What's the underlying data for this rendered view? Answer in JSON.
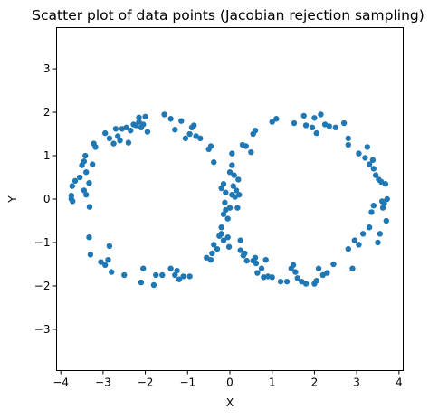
{
  "chart_data": {
    "type": "scatter",
    "title": "Scatter plot of data points (Jacobian rejection sampling)",
    "xlabel": "X",
    "ylabel": "Y",
    "xlim": [
      -4.1,
      4.1
    ],
    "ylim": [
      -3.95,
      3.95
    ],
    "xticks": [
      -4,
      -3,
      -2,
      -1,
      0,
      1,
      2,
      3,
      4
    ],
    "yticks": [
      -3,
      -2,
      -1,
      0,
      1,
      2,
      3
    ],
    "grid": false,
    "marker_color": "#1f77b4",
    "points": [
      {
        "x": -3.75,
        "y": 0.0
      },
      {
        "x": -3.75,
        "y": 0.08
      },
      {
        "x": -3.73,
        "y": 0.3
      },
      {
        "x": -3.72,
        "y": -0.05
      },
      {
        "x": -3.66,
        "y": 0.42
      },
      {
        "x": -3.55,
        "y": 0.5
      },
      {
        "x": -3.5,
        "y": 0.78
      },
      {
        "x": -3.45,
        "y": 0.87
      },
      {
        "x": -3.42,
        "y": 1.0
      },
      {
        "x": -3.4,
        "y": 0.62
      },
      {
        "x": -3.33,
        "y": 0.37
      },
      {
        "x": -3.45,
        "y": 0.2
      },
      {
        "x": -3.4,
        "y": 0.1
      },
      {
        "x": -3.22,
        "y": 1.28
      },
      {
        "x": -3.18,
        "y": 1.2
      },
      {
        "x": -3.25,
        "y": 0.8
      },
      {
        "x": -3.32,
        "y": -0.18
      },
      {
        "x": -3.33,
        "y": -0.88
      },
      {
        "x": -3.3,
        "y": -1.28
      },
      {
        "x": -3.05,
        "y": -1.45
      },
      {
        "x": -2.95,
        "y": -1.52
      },
      {
        "x": -2.88,
        "y": -1.4
      },
      {
        "x": -2.85,
        "y": -1.08
      },
      {
        "x": -2.8,
        "y": -1.68
      },
      {
        "x": -2.5,
        "y": -1.75
      },
      {
        "x": -2.95,
        "y": 1.52
      },
      {
        "x": -2.85,
        "y": 1.4
      },
      {
        "x": -2.75,
        "y": 1.28
      },
      {
        "x": -2.7,
        "y": 1.62
      },
      {
        "x": -2.65,
        "y": 1.45
      },
      {
        "x": -2.6,
        "y": 1.35
      },
      {
        "x": -2.55,
        "y": 1.62
      },
      {
        "x": -2.45,
        "y": 1.65
      },
      {
        "x": -2.4,
        "y": 1.3
      },
      {
        "x": -2.35,
        "y": 1.58
      },
      {
        "x": -2.28,
        "y": 1.72
      },
      {
        "x": -2.22,
        "y": 1.7
      },
      {
        "x": -2.15,
        "y": 1.78
      },
      {
        "x": -2.15,
        "y": 1.88
      },
      {
        "x": -2.1,
        "y": 1.65
      },
      {
        "x": -2.05,
        "y": 1.72
      },
      {
        "x": -2.0,
        "y": 1.9
      },
      {
        "x": -1.95,
        "y": 1.55
      },
      {
        "x": -1.55,
        "y": 1.95
      },
      {
        "x": -1.4,
        "y": 1.85
      },
      {
        "x": -1.3,
        "y": 1.6
      },
      {
        "x": -1.15,
        "y": 1.8
      },
      {
        "x": -1.05,
        "y": 1.4
      },
      {
        "x": -0.95,
        "y": 1.5
      },
      {
        "x": -0.9,
        "y": 1.65
      },
      {
        "x": -0.85,
        "y": 1.7
      },
      {
        "x": -0.8,
        "y": 1.45
      },
      {
        "x": -0.7,
        "y": 1.4
      },
      {
        "x": -0.5,
        "y": 1.15
      },
      {
        "x": -0.45,
        "y": 1.22
      },
      {
        "x": -0.38,
        "y": 0.85
      },
      {
        "x": -2.05,
        "y": -1.6
      },
      {
        "x": -2.1,
        "y": -1.92
      },
      {
        "x": -1.8,
        "y": -1.98
      },
      {
        "x": -1.75,
        "y": -1.75
      },
      {
        "x": -1.6,
        "y": -1.75
      },
      {
        "x": -1.4,
        "y": -1.6
      },
      {
        "x": -1.3,
        "y": -1.75
      },
      {
        "x": -1.25,
        "y": -1.65
      },
      {
        "x": -1.2,
        "y": -1.85
      },
      {
        "x": -1.1,
        "y": -1.78
      },
      {
        "x": -0.95,
        "y": -1.78
      },
      {
        "x": -0.55,
        "y": -1.35
      },
      {
        "x": -0.45,
        "y": -1.4
      },
      {
        "x": -0.42,
        "y": -1.25
      },
      {
        "x": -0.38,
        "y": -1.05
      },
      {
        "x": -0.3,
        "y": -1.15
      },
      {
        "x": -0.25,
        "y": -0.85
      },
      {
        "x": -0.2,
        "y": -0.65
      },
      {
        "x": -0.2,
        "y": -0.8
      },
      {
        "x": -0.15,
        "y": -0.95
      },
      {
        "x": -0.15,
        "y": -0.35
      },
      {
        "x": -0.12,
        "y": -0.08
      },
      {
        "x": -0.1,
        "y": -0.25
      },
      {
        "x": -0.05,
        "y": -0.45
      },
      {
        "x": -0.05,
        "y": -0.88
      },
      {
        "x": -0.02,
        "y": -1.1
      },
      {
        "x": 0.0,
        "y": -0.2
      },
      {
        "x": 0.05,
        "y": 0.1
      },
      {
        "x": 0.08,
        "y": 0.3
      },
      {
        "x": -0.2,
        "y": 0.25
      },
      {
        "x": -0.15,
        "y": 0.35
      },
      {
        "x": -0.1,
        "y": 0.15
      },
      {
        "x": 0.0,
        "y": 0.62
      },
      {
        "x": 0.05,
        "y": 0.78
      },
      {
        "x": 0.1,
        "y": 0.55
      },
      {
        "x": 0.05,
        "y": 1.05
      },
      {
        "x": 0.12,
        "y": 0.05
      },
      {
        "x": 0.15,
        "y": 0.2
      },
      {
        "x": 0.18,
        "y": -0.2
      },
      {
        "x": 0.2,
        "y": 0.45
      },
      {
        "x": 0.22,
        "y": 0.1
      },
      {
        "x": 0.25,
        "y": -0.95
      },
      {
        "x": 0.25,
        "y": -1.18
      },
      {
        "x": 0.3,
        "y": 1.25
      },
      {
        "x": 0.32,
        "y": -1.3
      },
      {
        "x": 0.35,
        "y": -1.25
      },
      {
        "x": 0.38,
        "y": 1.22
      },
      {
        "x": 0.4,
        "y": -1.42
      },
      {
        "x": 0.5,
        "y": 1.08
      },
      {
        "x": 0.55,
        "y": 1.5
      },
      {
        "x": 0.6,
        "y": 1.58
      },
      {
        "x": 0.55,
        "y": -1.42
      },
      {
        "x": 0.6,
        "y": -1.35
      },
      {
        "x": 0.62,
        "y": -1.48
      },
      {
        "x": 0.65,
        "y": -1.7
      },
      {
        "x": 0.75,
        "y": -1.6
      },
      {
        "x": 0.8,
        "y": -1.8
      },
      {
        "x": 0.85,
        "y": -1.4
      },
      {
        "x": 0.9,
        "y": -1.78
      },
      {
        "x": 1.0,
        "y": -1.8
      },
      {
        "x": 1.0,
        "y": 1.78
      },
      {
        "x": 1.1,
        "y": 1.85
      },
      {
        "x": 1.2,
        "y": -1.9
      },
      {
        "x": 1.35,
        "y": -1.9
      },
      {
        "x": 1.45,
        "y": -1.6
      },
      {
        "x": 1.5,
        "y": -1.52
      },
      {
        "x": 1.52,
        "y": 1.75
      },
      {
        "x": 1.55,
        "y": -1.68
      },
      {
        "x": 1.6,
        "y": -1.82
      },
      {
        "x": 1.7,
        "y": -1.9
      },
      {
        "x": 1.75,
        "y": 1.92
      },
      {
        "x": 1.8,
        "y": 1.7
      },
      {
        "x": 1.8,
        "y": -1.95
      },
      {
        "x": 1.95,
        "y": 1.65
      },
      {
        "x": 2.0,
        "y": 1.87
      },
      {
        "x": 2.0,
        "y": -1.95
      },
      {
        "x": 2.05,
        "y": 1.52
      },
      {
        "x": 2.05,
        "y": -1.88
      },
      {
        "x": 2.1,
        "y": -1.6
      },
      {
        "x": 2.15,
        "y": 1.95
      },
      {
        "x": 2.2,
        "y": -1.75
      },
      {
        "x": 2.25,
        "y": 1.72
      },
      {
        "x": 2.3,
        "y": -1.7
      },
      {
        "x": 2.35,
        "y": 1.68
      },
      {
        "x": 2.45,
        "y": -1.5
      },
      {
        "x": 2.5,
        "y": 1.65
      },
      {
        "x": 2.7,
        "y": 1.75
      },
      {
        "x": 2.8,
        "y": 1.4
      },
      {
        "x": 2.8,
        "y": 1.25
      },
      {
        "x": 2.8,
        "y": -1.15
      },
      {
        "x": 2.9,
        "y": -1.6
      },
      {
        "x": 2.95,
        "y": -0.95
      },
      {
        "x": 3.05,
        "y": -1.05
      },
      {
        "x": 3.05,
        "y": 1.05
      },
      {
        "x": 3.15,
        "y": -0.8
      },
      {
        "x": 3.2,
        "y": 0.95
      },
      {
        "x": 3.25,
        "y": 1.2
      },
      {
        "x": 3.3,
        "y": 0.8
      },
      {
        "x": 3.3,
        "y": -0.65
      },
      {
        "x": 3.35,
        "y": -0.3
      },
      {
        "x": 3.38,
        "y": 0.9
      },
      {
        "x": 3.4,
        "y": 0.7
      },
      {
        "x": 3.45,
        "y": 0.55
      },
      {
        "x": 3.5,
        "y": -1.0
      },
      {
        "x": 3.52,
        "y": 0.45
      },
      {
        "x": 3.55,
        "y": -0.8
      },
      {
        "x": 3.58,
        "y": 0.4
      },
      {
        "x": 3.6,
        "y": -0.05
      },
      {
        "x": 3.62,
        "y": -0.2
      },
      {
        "x": 3.65,
        "y": -0.1
      },
      {
        "x": 3.68,
        "y": 0.35
      },
      {
        "x": 3.7,
        "y": -0.5
      },
      {
        "x": 3.72,
        "y": 0.0
      },
      {
        "x": 3.4,
        "y": -0.15
      }
    ]
  }
}
